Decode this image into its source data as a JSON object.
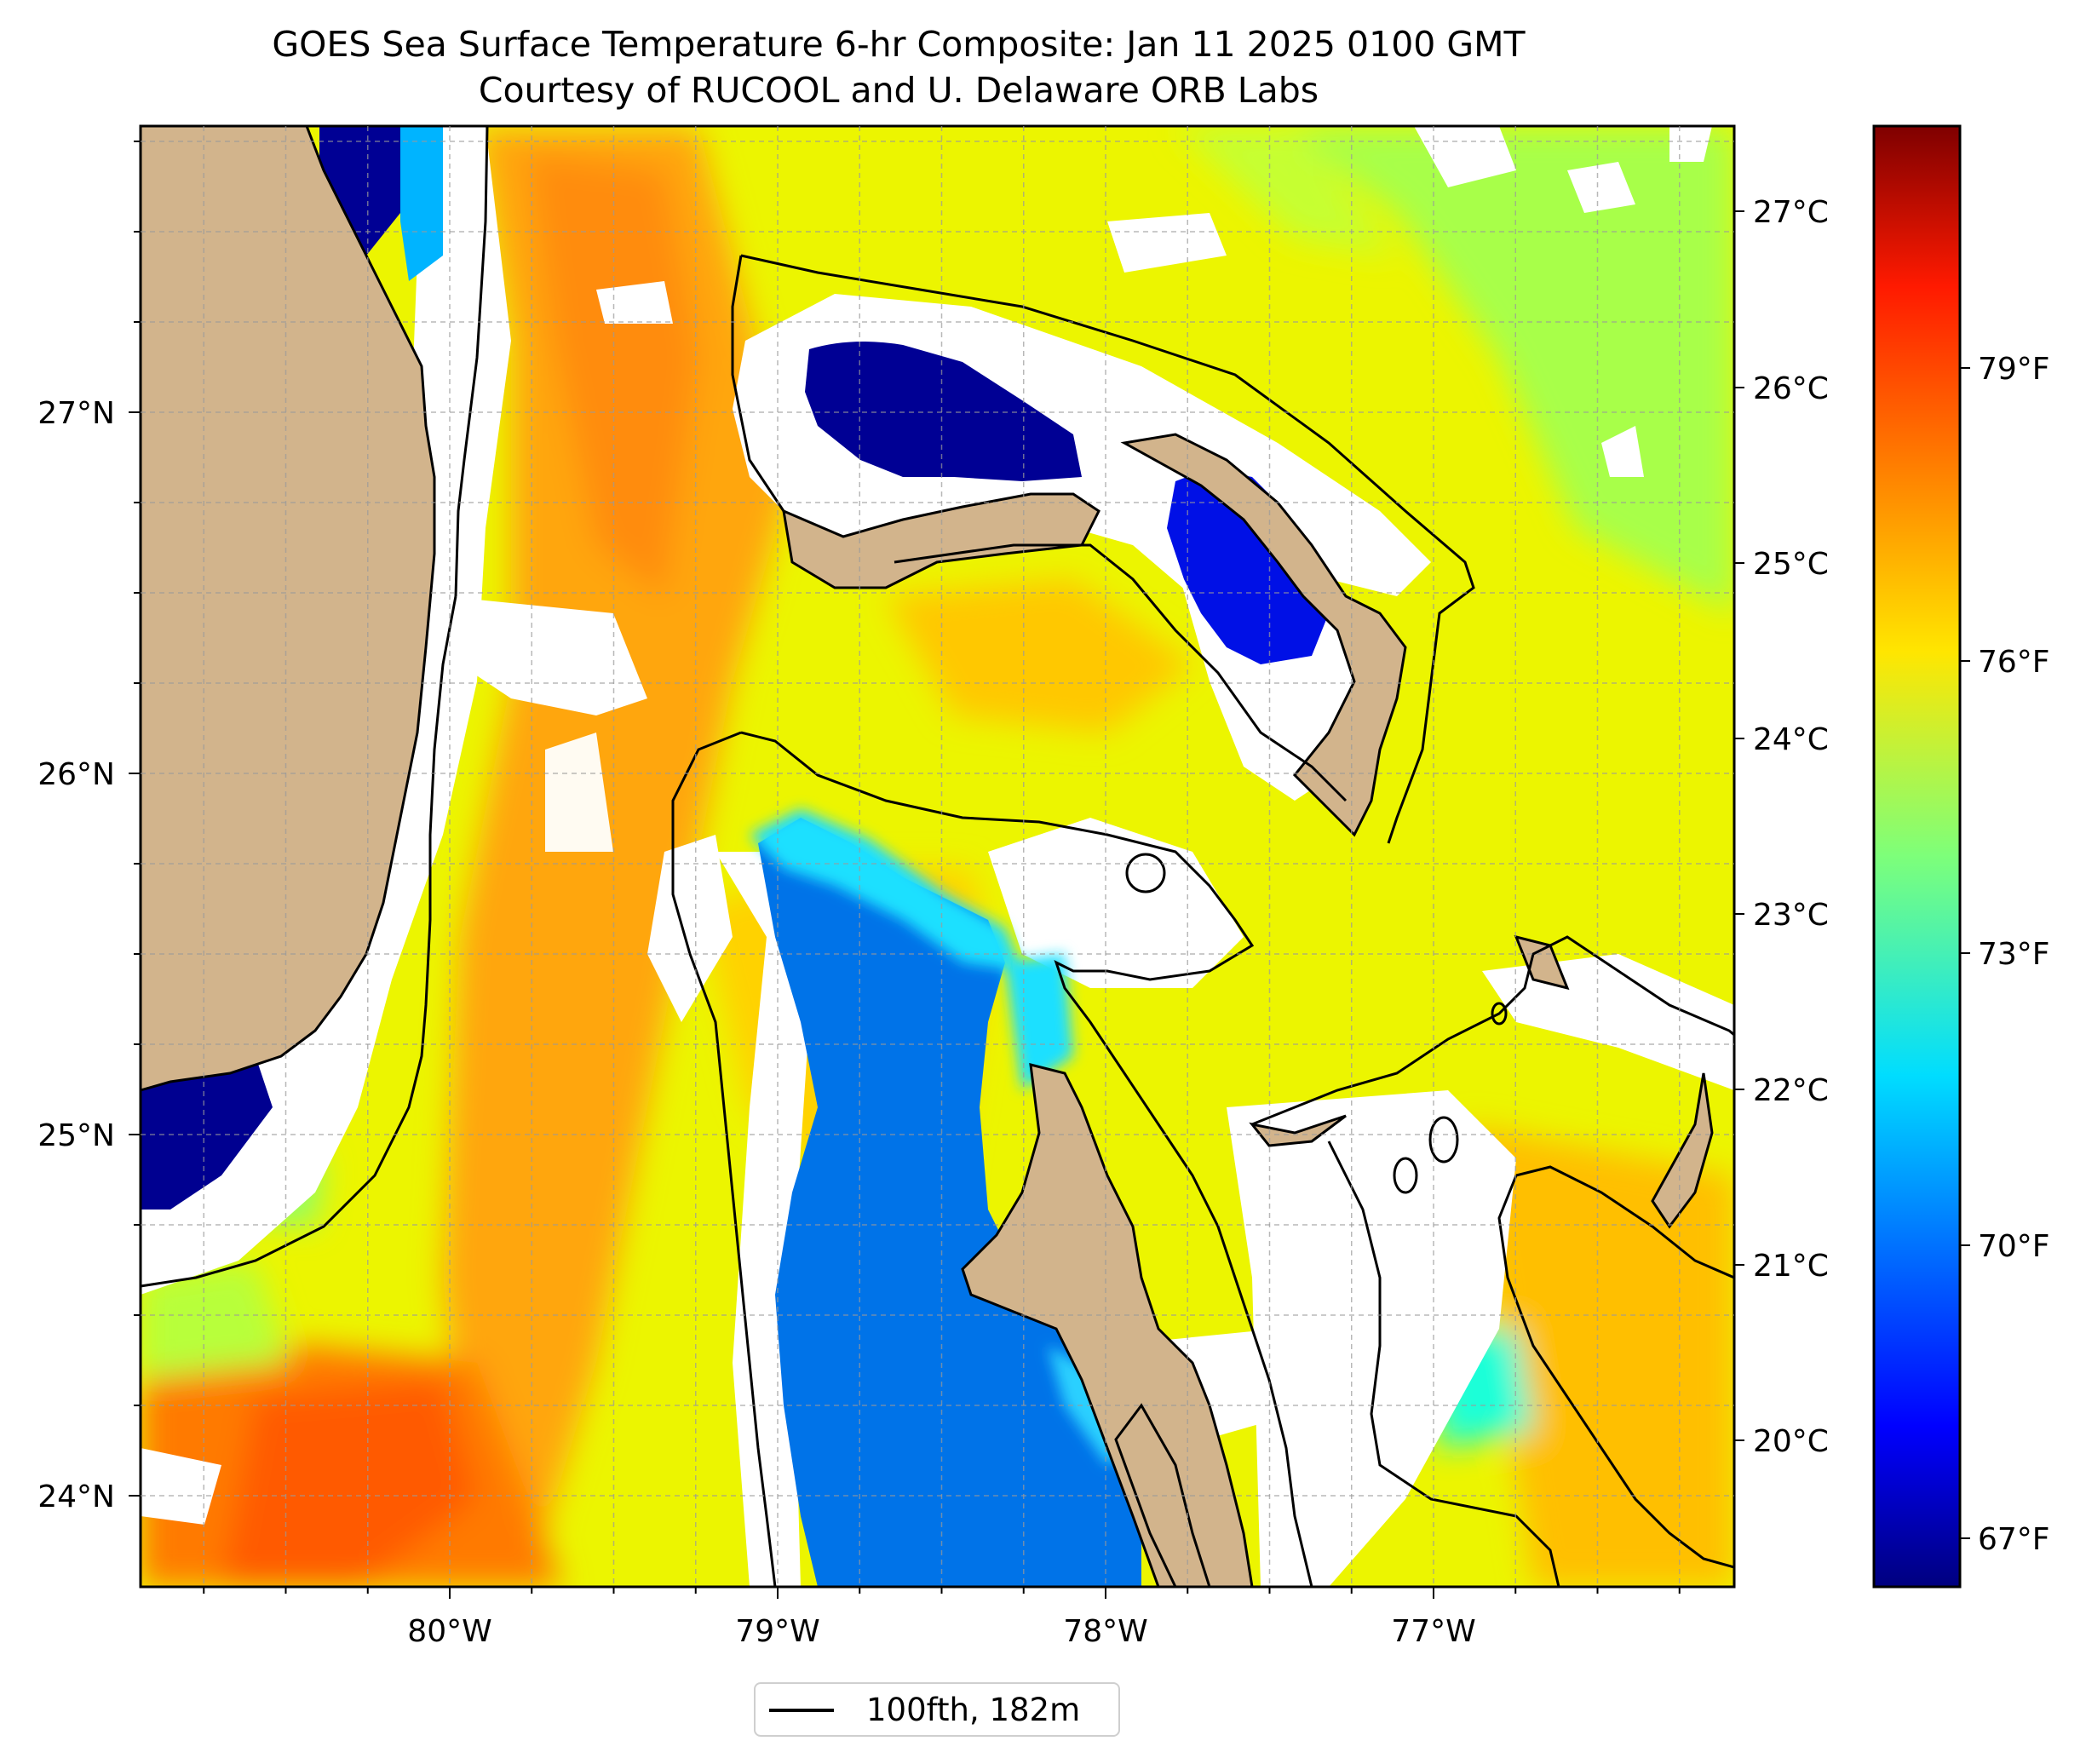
{
  "title": "GOES Sea Surface Temperature 6-hr Composite: Jan 11 2025 0100 GMT",
  "subtitle": "Courtesy of RUCOOL and U. Delaware ORB Labs",
  "map": {
    "lat_range": [
      23.75,
      27.8
    ],
    "lon_range": [
      -80.95,
      -76.2
    ],
    "lat_ticks": [
      "27°N",
      "26°N",
      "25°N",
      "24°N"
    ],
    "lon_ticks": [
      "80°W",
      "79°W",
      "78°W",
      "77°W"
    ],
    "gridlines": "dashed",
    "land_color": "#d2b48c"
  },
  "colorbar": {
    "colormap": "jet",
    "celsius_ticks": [
      "27°C",
      "26°C",
      "25°C",
      "24°C",
      "23°C",
      "22°C",
      "21°C",
      "20°C"
    ],
    "fahrenheit_ticks": [
      "79°F",
      "76°F",
      "73°F",
      "70°F",
      "67°F"
    ]
  },
  "legend": {
    "label": "100fth, 182m",
    "line_color": "#000000"
  }
}
